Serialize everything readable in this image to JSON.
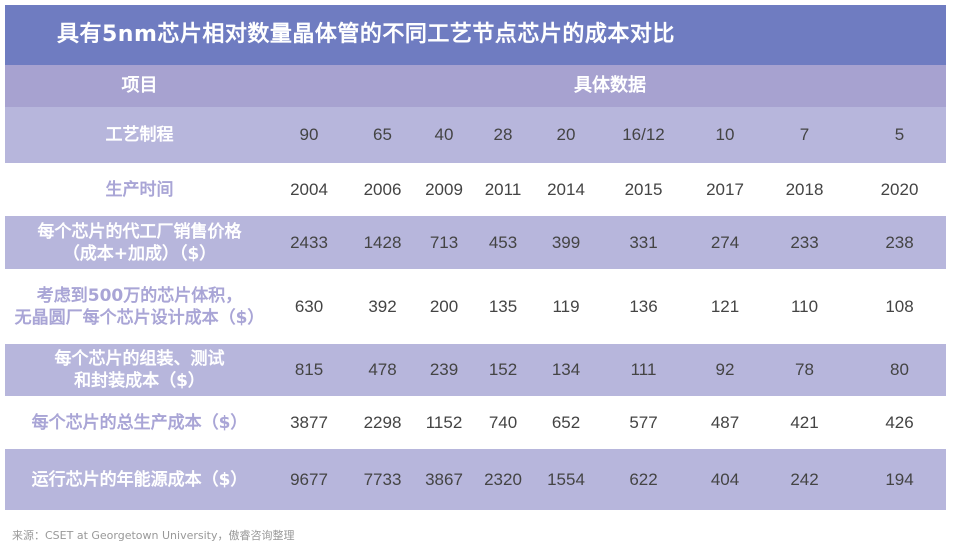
{
  "title": "具有5nm芯片相对数量晶体管的不同工艺节点芯片的成本对比",
  "header": {
    "item": "项目",
    "data": "具体数据"
  },
  "rows": [
    {
      "label_lines": [
        "工艺制程"
      ],
      "values": [
        "90",
        "65",
        "40",
        "28",
        "20",
        "16/12",
        "10",
        "7",
        "5"
      ]
    },
    {
      "label_lines": [
        "生产时间"
      ],
      "values": [
        "2004",
        "2006",
        "2009",
        "2011",
        "2014",
        "2015",
        "2017",
        "2018",
        "2020"
      ]
    },
    {
      "label_lines": [
        "每个芯片的代工厂销售价格",
        "（成本+加成）（$）"
      ],
      "values": [
        "2433",
        "1428",
        "713",
        "453",
        "399",
        "331",
        "274",
        "233",
        "238"
      ]
    },
    {
      "label_lines": [
        "考虑到500万的芯片体积，",
        "无晶圆厂每个芯片设计成本（$）"
      ],
      "values": [
        "630",
        "392",
        "200",
        "135",
        "119",
        "136",
        "121",
        "110",
        "108"
      ]
    },
    {
      "label_lines": [
        "每个芯片的组装、测试",
        "和封装成本（$）"
      ],
      "values": [
        "815",
        "478",
        "239",
        "152",
        "134",
        "111",
        "92",
        "78",
        "80"
      ]
    },
    {
      "label_lines": [
        "每个芯片的总生产成本（$）"
      ],
      "values": [
        "3877",
        "2298",
        "1152",
        "740",
        "652",
        "577",
        "487",
        "421",
        "426"
      ]
    },
    {
      "label_lines": [
        "运行芯片的年能源成本（$）"
      ],
      "values": [
        "9677",
        "7733",
        "3867",
        "2320",
        "1554",
        "622",
        "404",
        "242",
        "194"
      ]
    }
  ],
  "source": "来源：CSET at Georgetown University，傲睿咨询整理"
}
